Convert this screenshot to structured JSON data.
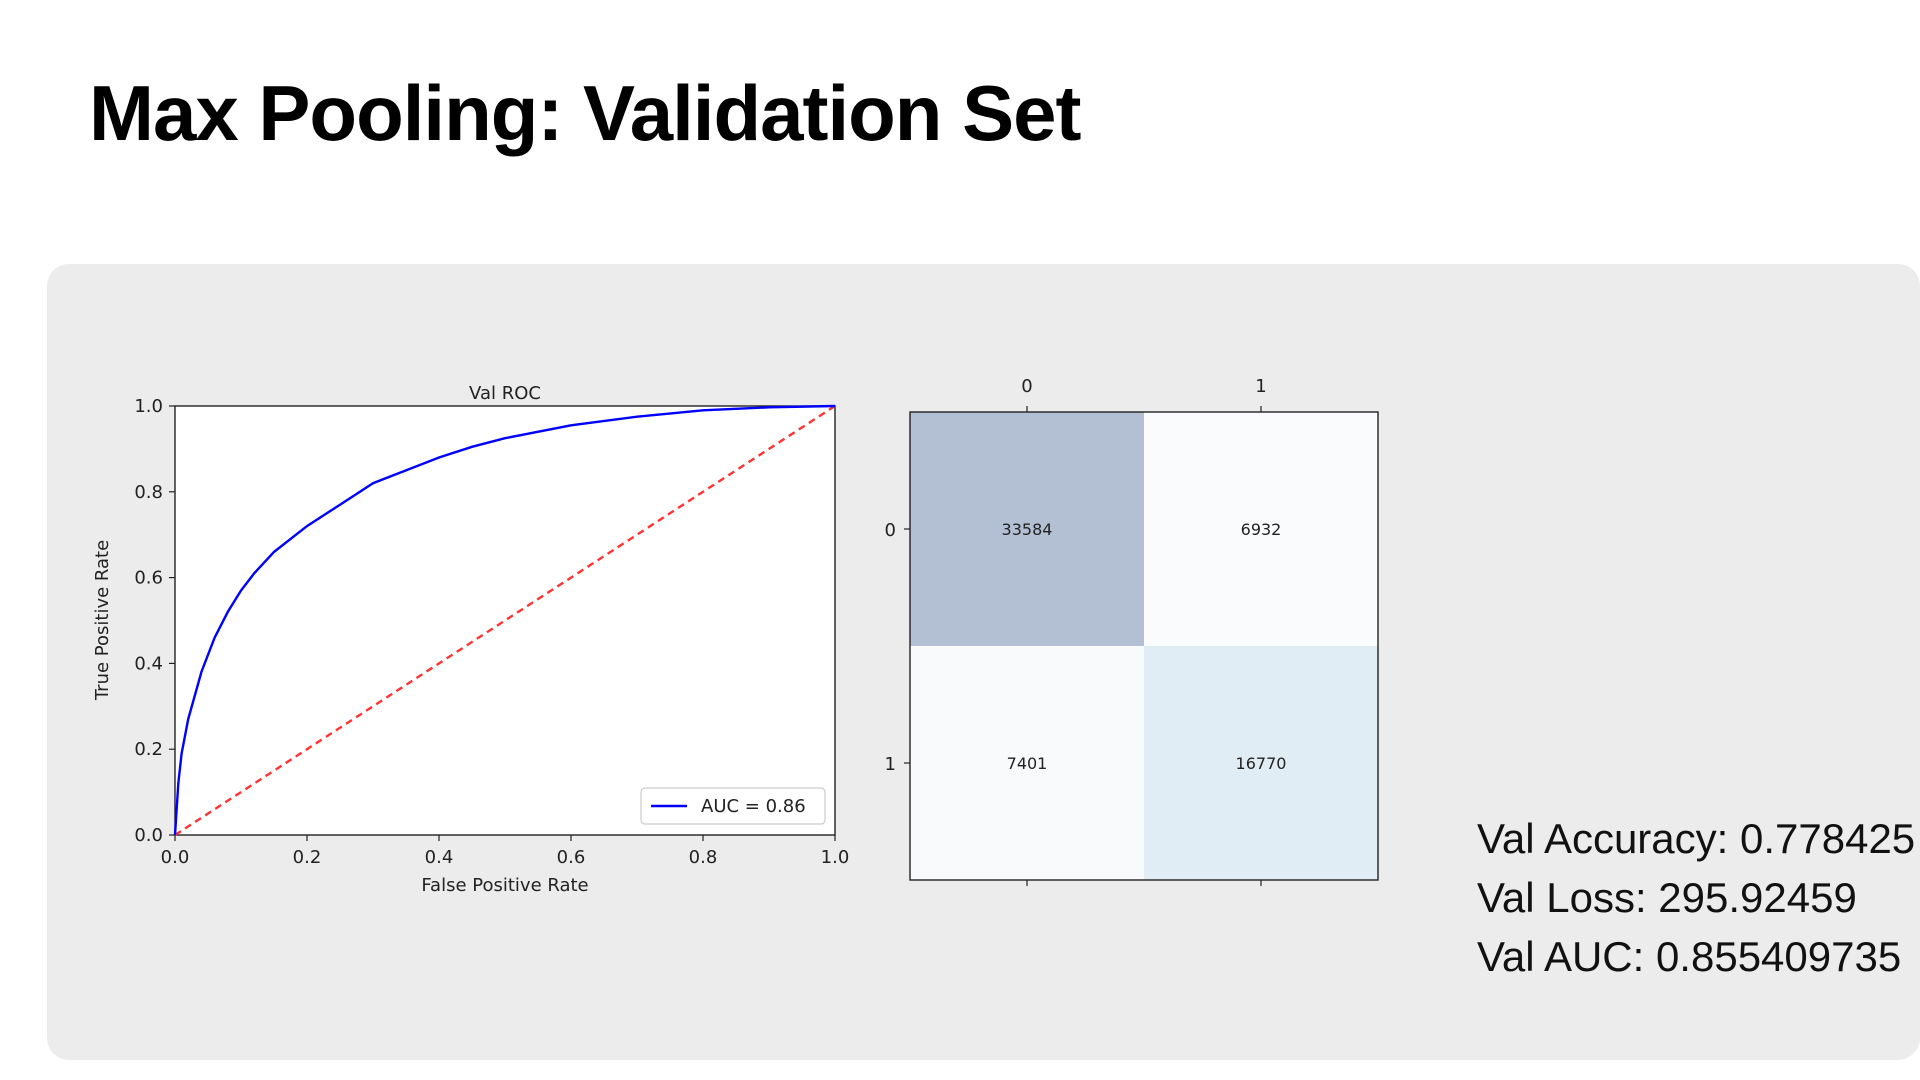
{
  "slide": {
    "title": "Max Pooling: Validation Set"
  },
  "chart_data": [
    {
      "type": "line",
      "title": "Val ROC",
      "xlabel": "False Positive Rate",
      "ylabel": "True Positive Rate",
      "xlim": [
        0.0,
        1.0
      ],
      "ylim": [
        0.0,
        1.0
      ],
      "xticks": [
        "0.0",
        "0.2",
        "0.4",
        "0.6",
        "0.8",
        "1.0"
      ],
      "yticks": [
        "0.0",
        "0.2",
        "0.4",
        "0.6",
        "0.8",
        "1.0"
      ],
      "grid": false,
      "legend_position": "lower-right",
      "series": [
        {
          "name": "AUC = 0.86",
          "color": "#0000ff",
          "style": "solid",
          "x": [
            0.0,
            0.005,
            0.01,
            0.02,
            0.04,
            0.06,
            0.08,
            0.1,
            0.12,
            0.15,
            0.2,
            0.25,
            0.3,
            0.35,
            0.4,
            0.45,
            0.5,
            0.6,
            0.7,
            0.8,
            0.9,
            1.0
          ],
          "y": [
            0.0,
            0.12,
            0.19,
            0.27,
            0.38,
            0.46,
            0.52,
            0.57,
            0.61,
            0.66,
            0.72,
            0.77,
            0.82,
            0.85,
            0.88,
            0.905,
            0.925,
            0.955,
            0.975,
            0.99,
            0.997,
            1.0
          ]
        },
        {
          "name": "",
          "color": "#ff3333",
          "style": "dashed",
          "x": [
            0.0,
            1.0
          ],
          "y": [
            0.0,
            1.0
          ]
        }
      ]
    },
    {
      "type": "heatmap",
      "x_labels": [
        "0",
        "1"
      ],
      "y_labels": [
        "0",
        "1"
      ],
      "values": [
        [
          33584,
          6932
        ],
        [
          7401,
          16770
        ]
      ],
      "colors": [
        [
          "#b3bfd2",
          "#fafbfd"
        ],
        [
          "#f8fafc",
          "#e1edf4"
        ]
      ]
    }
  ],
  "metrics": {
    "accuracy": "Val Accuracy: 0.778425",
    "loss": "Val Loss: 295.92459",
    "auc": "Val AUC: 0.855409735"
  }
}
